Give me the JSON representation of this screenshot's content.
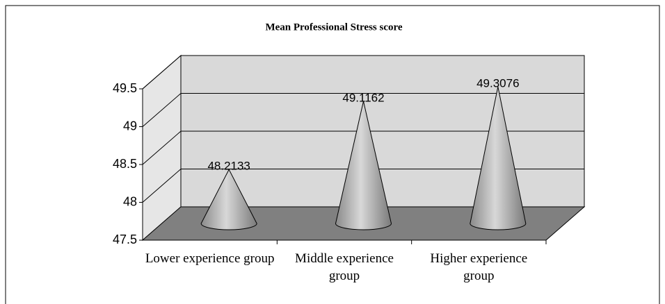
{
  "chart_data": {
    "type": "cone3d",
    "title": "Mean Professional Stress score",
    "categories": [
      "Lower experience group",
      "Middle experience group",
      "Higher experience group"
    ],
    "values": [
      48.2133,
      49.1162,
      49.3076
    ],
    "color": "#b0b0b0",
    "ylim": [
      47.5,
      49.5
    ],
    "yticks": [
      47.5,
      48,
      48.5,
      49,
      49.5
    ],
    "grid": true
  }
}
